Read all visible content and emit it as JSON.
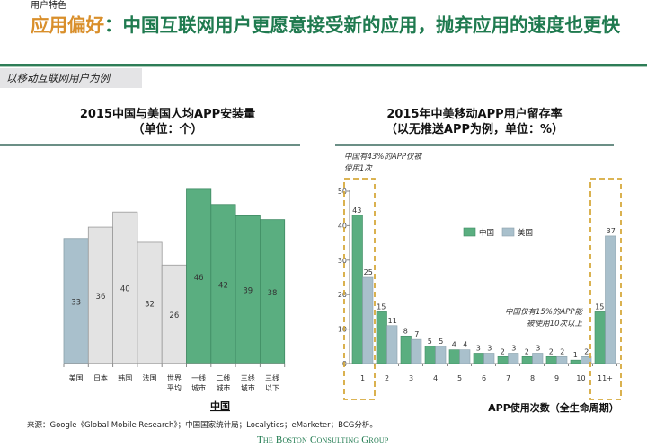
{
  "header": {
    "section": "用户特色",
    "title_highlight": "应用偏好",
    "title_rest": "：中国互联网用户更愿意接受新的应用，抛弃应用的速度也更快",
    "example_label": "以移动互联网用户为例"
  },
  "colors": {
    "china": "#5aae80",
    "usa": "#a9c0cc",
    "other": "#e3e3e3",
    "title_green": "#1f7a4f",
    "title_orange": "#d98f2b",
    "highlight_box": "#d6a93c"
  },
  "chart_data": [
    {
      "type": "bar",
      "title": "2015中国与美国人均APP安装量",
      "subtitle": "（单位：个）",
      "categories": [
        "美国",
        "日本",
        "韩国",
        "法国",
        "世界平均",
        "一线城市",
        "二线城市",
        "三线城市",
        "三线以下"
      ],
      "category_lines": [
        [
          "美国"
        ],
        [
          "日本"
        ],
        [
          "韩国"
        ],
        [
          "法国"
        ],
        [
          "世界",
          "平均"
        ],
        [
          "一线",
          "城市"
        ],
        [
          "二线",
          "城市"
        ],
        [
          "三线",
          "城市"
        ],
        [
          "三线",
          "以下"
        ]
      ],
      "values": [
        33,
        36,
        40,
        32,
        26,
        46,
        42,
        39,
        38
      ],
      "bar_groups": [
        "usa",
        "other",
        "other",
        "other",
        "other",
        "china",
        "china",
        "china",
        "china"
      ],
      "group_label": "中国",
      "ylim": [
        0,
        50
      ]
    },
    {
      "type": "bar",
      "title": "2015年中美移动APP用户留存率",
      "subtitle": "（以无推送APP为例，单位：%）",
      "categories": [
        "1",
        "2",
        "3",
        "4",
        "5",
        "6",
        "7",
        "8",
        "9",
        "10",
        "11+"
      ],
      "series": [
        {
          "name": "中国",
          "values": [
            43,
            15,
            8,
            5,
            4,
            3,
            2,
            2,
            2,
            1,
            15
          ]
        },
        {
          "name": "美国",
          "values": [
            25,
            11,
            7,
            5,
            4,
            3,
            3,
            3,
            2,
            2,
            37
          ]
        }
      ],
      "yticks": [
        0,
        10,
        20,
        30,
        40,
        50
      ],
      "ylim": [
        0,
        50
      ],
      "xlabel": "APP使用次数（全生命周期）",
      "legend": "top-center",
      "annotations": [
        "中国有43%的APP仅被使用1次",
        "中国仅有15%的APP能被使用10次以上"
      ],
      "annotation_lines": [
        [
          "中国有43%的APP仅被",
          "使用1次"
        ],
        [
          "中国仅有15%的APP能",
          "被使用10次以上"
        ]
      ]
    }
  ],
  "footer": {
    "source": "来源：Google《Global Mobile Research》；中国国家统计局；Localytics；eMarketer；BCG分析。",
    "logo": "The Boston Consulting Group"
  }
}
